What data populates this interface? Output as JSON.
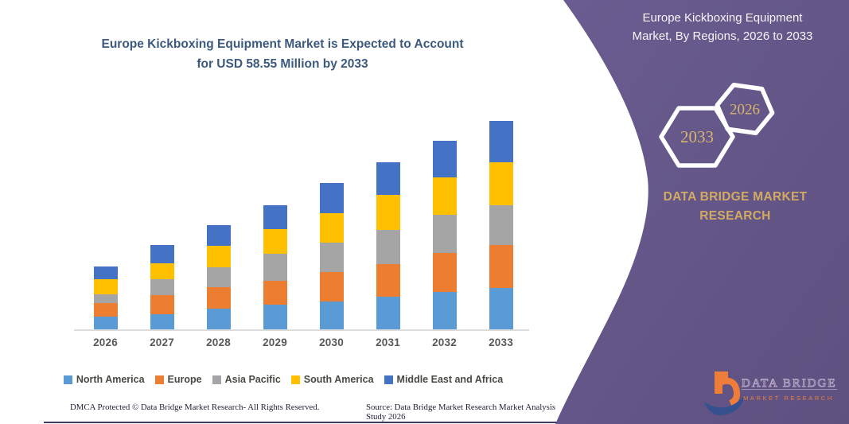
{
  "main": {
    "title_line1": "Europe Kickboxing Equipment Market is Expected to Account",
    "title_line2": "for USD 58.55 Million by 2033"
  },
  "chart_data": {
    "type": "bar",
    "stacked": true,
    "title": "Europe Kickboxing Equipment Market is Expected to Account for USD 58.55 Million by 2033",
    "unit": "USD Million",
    "xlabel": "",
    "ylabel": "",
    "ylim": [
      0,
      60
    ],
    "grid": false,
    "legend_position": "bottom",
    "categories": [
      "2026",
      "2027",
      "2028",
      "2029",
      "2030",
      "2031",
      "2032",
      "2033"
    ],
    "series": [
      {
        "name": "North America",
        "color": "#5B9BD5",
        "values": [
          3.9,
          4.5,
          6.1,
          7.1,
          8.0,
          9.3,
          10.7,
          11.75
        ]
      },
      {
        "name": "Europe",
        "color": "#ED7D31",
        "values": [
          3.6,
          5.2,
          5.9,
          6.8,
          8.2,
          9.3,
          10.8,
          12.1
        ]
      },
      {
        "name": "Asia Pacific",
        "color": "#A5A5A5",
        "values": [
          2.6,
          4.5,
          5.6,
          7.5,
          8.3,
          9.5,
          10.8,
          11.05
        ]
      },
      {
        "name": "South America",
        "color": "#FFC000",
        "values": [
          4.2,
          4.5,
          6.1,
          6.8,
          8.3,
          9.8,
          10.4,
          12.1
        ]
      },
      {
        "name": "Middle East and Africa",
        "color": "#4472C4",
        "values": [
          3.6,
          5.2,
          5.8,
          6.8,
          8.4,
          9.1,
          10.2,
          11.55
        ]
      }
    ],
    "totals": [
      17.9,
      23.9,
      29.5,
      35.0,
      41.2,
      47.0,
      52.9,
      58.55
    ],
    "final_value_label": "USD 58.55 Million by 2033"
  },
  "footer": {
    "dmca": "DMCA Protected © Data Bridge Market Research-  All Rights Reserved.",
    "source": "Source: Data Bridge Market Research  Market Analysis Study 2026"
  },
  "panel": {
    "title_line1": "Europe Kickboxing Equipment",
    "title_line2": "Market, By Regions, 2026 to 2033",
    "hexagons": [
      {
        "label": "2033"
      },
      {
        "label": "2026"
      }
    ],
    "brand": "DATA BRIDGE MARKET RESEARCH",
    "logo": {
      "title": "DATA BRIDGE",
      "subtitle": "MARKET RESEARCH"
    },
    "colors": {
      "panel_purple_top": "#6a5c90",
      "panel_purple_bottom": "#5e5180",
      "gold": "#d9b46c",
      "brand_gold": "#d2ab62",
      "logo_orange": "#ef7d3a",
      "logo_navy": "#35508f",
      "title_blue": "#3c5a7e"
    }
  }
}
